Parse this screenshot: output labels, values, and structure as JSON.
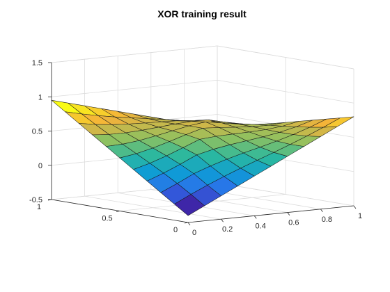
{
  "chart_data": {
    "type": "surface",
    "title": "XOR training result",
    "xlabel": "",
    "ylabel": "",
    "zlabel": "",
    "x_range": [
      0,
      1
    ],
    "y_range": [
      0,
      1
    ],
    "z_range": [
      -0.5,
      1.5
    ],
    "x_ticks": [
      "0",
      "0.2",
      "0.4",
      "0.6",
      "0.8",
      "1"
    ],
    "x_tick_values": [
      0,
      0.2,
      0.4,
      0.6,
      0.8,
      1
    ],
    "y_ticks": [
      "0",
      "0.5",
      "1"
    ],
    "y_tick_values": [
      0,
      0.5,
      1
    ],
    "z_ticks": [
      "-0.5",
      "0",
      "0.5",
      "1",
      "1.5"
    ],
    "z_tick_values": [
      -0.5,
      0,
      0.5,
      1,
      1.5
    ],
    "grid": true,
    "colormap": [
      "#3e26a8",
      "#2f6ced",
      "#0e9cd6",
      "#2ab8a0",
      "#8ec160",
      "#f5b13a",
      "#f9fb15"
    ],
    "surface_corners": {
      "x0_y0": -0.4,
      "x1_y0": 0.8,
      "x0_y1": 0.95,
      "x1_y1": 0.3
    },
    "grid_steps": 10
  }
}
